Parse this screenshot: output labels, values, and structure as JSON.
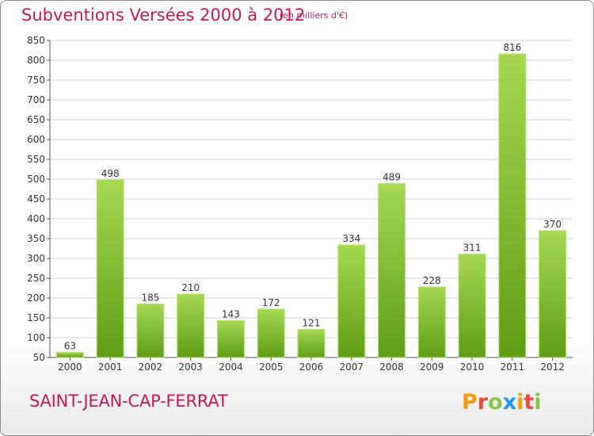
{
  "header": {
    "title": "Subventions Versées 2000 à 2012",
    "unit_note": "(en milliers d'€)"
  },
  "footer": {
    "commune": "SAINT-JEAN-CAP-FERRAT",
    "logo_text": "Proxiti"
  },
  "colors": {
    "title": "#c2185b",
    "bar_light": "#9fd24a",
    "bar_dark": "#5a9a12",
    "logo": [
      "#f39c12",
      "#e74c3c",
      "#8bc34a",
      "#2196f3",
      "#f39c12",
      "#e74c3c",
      "#8bc34a"
    ]
  },
  "chart_data": {
    "type": "bar",
    "title": "Subventions Versées 2000 à 2012",
    "subtitle": "(en milliers d'€)",
    "categories": [
      "2000",
      "2001",
      "2002",
      "2003",
      "2004",
      "2005",
      "2006",
      "2007",
      "2008",
      "2009",
      "2010",
      "2011",
      "2012"
    ],
    "values": [
      63,
      498,
      185,
      210,
      143,
      172,
      121,
      334,
      489,
      228,
      311,
      816,
      370
    ],
    "ylim": [
      50,
      850
    ],
    "yticks": [
      50,
      100,
      150,
      200,
      250,
      300,
      350,
      400,
      450,
      500,
      550,
      600,
      650,
      700,
      750,
      800,
      850
    ],
    "grid": true,
    "data_labels": true
  }
}
